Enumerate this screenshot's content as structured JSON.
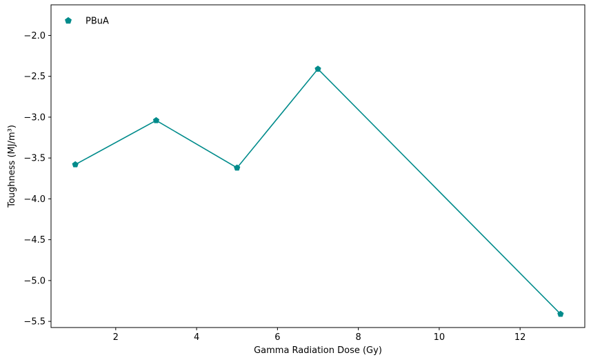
{
  "chart_data": {
    "type": "line",
    "xlabel": "Gamma Radiation Dose (Gy)",
    "ylabel": "Toughness (MJ/m³)",
    "xlim": [
      0.4,
      13.6
    ],
    "ylim": [
      -5.575,
      -1.625
    ],
    "x_ticks": [
      2,
      4,
      6,
      8,
      10,
      12
    ],
    "x_tick_labels": [
      "2",
      "4",
      "6",
      "8",
      "10",
      "12"
    ],
    "y_ticks": [
      -2.0,
      -2.5,
      -3.0,
      -3.5,
      -4.0,
      -4.5,
      -5.0,
      -5.5
    ],
    "y_tick_labels": [
      "−2.0",
      "−2.5",
      "−3.0",
      "−3.5",
      "−4.0",
      "−4.5",
      "−5.0",
      "−5.5"
    ],
    "grid": false,
    "legend_position": "top-left",
    "series": [
      {
        "name": "PBuA",
        "color": "#008b8b",
        "marker": "pentagon",
        "x": [
          1,
          3,
          5,
          7,
          13
        ],
        "y": [
          -3.58,
          -3.04,
          -3.62,
          -2.41,
          -5.41
        ]
      }
    ]
  }
}
